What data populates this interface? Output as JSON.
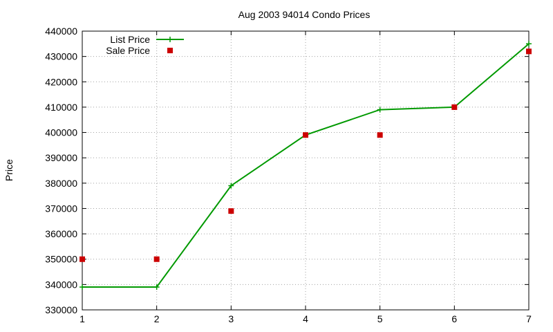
{
  "chart_data": {
    "type": "line",
    "title": "Aug 2003 94014 Condo Prices",
    "xlabel": "",
    "ylabel": "Price",
    "xlim": [
      1,
      7
    ],
    "ylim": [
      330000,
      440000
    ],
    "x_ticks": [
      1,
      2,
      3,
      4,
      5,
      6,
      7
    ],
    "y_ticks": [
      330000,
      340000,
      350000,
      360000,
      370000,
      380000,
      390000,
      400000,
      410000,
      420000,
      430000,
      440000
    ],
    "grid": true,
    "legend_position": "top-left",
    "series": [
      {
        "name": "List Price",
        "style": "line-with-plus-markers",
        "color": "#009900",
        "x": [
          1,
          2,
          3,
          4,
          5,
          6,
          7
        ],
        "y": [
          339000,
          339000,
          379000,
          399000,
          409000,
          410000,
          435000
        ]
      },
      {
        "name": "Sale Price",
        "style": "square-markers",
        "color": "#cc0000",
        "x": [
          1,
          2,
          3,
          4,
          5,
          6,
          7
        ],
        "y": [
          350000,
          350000,
          369000,
          399000,
          399000,
          410000,
          432000
        ]
      }
    ]
  }
}
